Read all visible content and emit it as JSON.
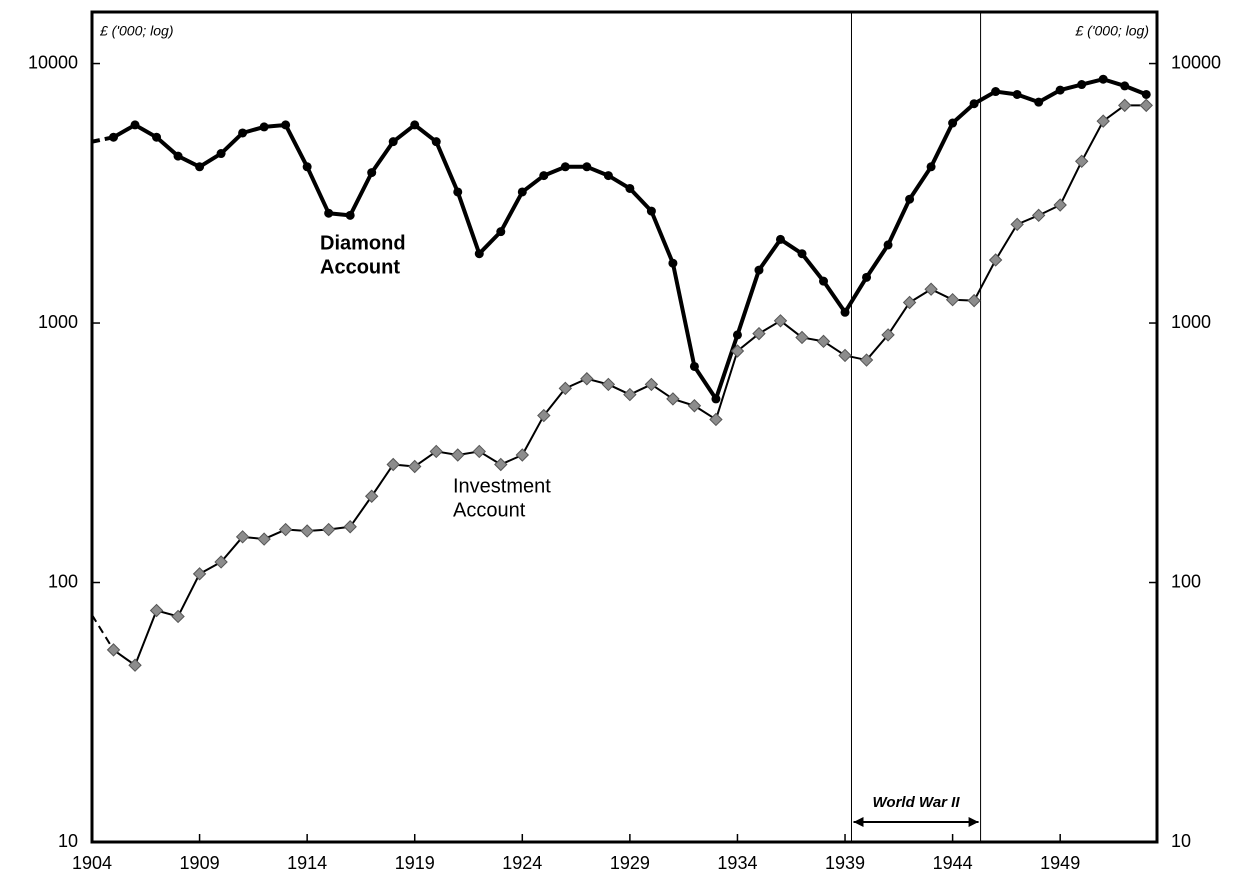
{
  "chart_data": {
    "type": "line",
    "axis_label_left": "£ ('000; log)",
    "axis_label_right": "£ ('000; log)",
    "x": [
      1904,
      1905,
      1906,
      1907,
      1908,
      1909,
      1910,
      1911,
      1912,
      1913,
      1914,
      1915,
      1916,
      1917,
      1918,
      1919,
      1920,
      1921,
      1922,
      1923,
      1924,
      1925,
      1926,
      1927,
      1928,
      1929,
      1930,
      1931,
      1932,
      1933,
      1934,
      1935,
      1936,
      1937,
      1938,
      1939,
      1940,
      1941,
      1942,
      1943,
      1944,
      1945,
      1946,
      1947,
      1948,
      1949,
      1950,
      1951,
      1952,
      1953
    ],
    "xlim": [
      1904,
      1953.5
    ],
    "xticks": [
      1904,
      1909,
      1914,
      1919,
      1924,
      1929,
      1934,
      1939,
      1944,
      1949
    ],
    "ylim": [
      10,
      15800
    ],
    "yticks": [
      10,
      100,
      1000,
      10000
    ],
    "y2lim": [
      10,
      15800
    ],
    "y2ticks": [
      10,
      100,
      1000,
      10000
    ],
    "log_scale": true,
    "dashed_first_segment": true,
    "series": [
      {
        "name": "Diamond Account",
        "color": "#000000",
        "marker": "circle",
        "values": [
          5000,
          5200,
          5800,
          5200,
          4400,
          4000,
          4500,
          5400,
          5700,
          5800,
          4000,
          2650,
          2600,
          3800,
          5000,
          5800,
          5000,
          3200,
          1850,
          2250,
          3200,
          3700,
          4000,
          4000,
          3700,
          3300,
          2700,
          1700,
          680,
          510,
          900,
          1600,
          2100,
          1850,
          1450,
          1100,
          1500,
          2000,
          3000,
          4000,
          5900,
          7000,
          7800,
          7600,
          7100,
          7900,
          8300,
          8700,
          8200,
          7600
        ]
      },
      {
        "name": "Investment Account",
        "color": "#8c8c8c",
        "marker": "diamond",
        "values": [
          75,
          55,
          48,
          78,
          74,
          108,
          120,
          150,
          147,
          160,
          158,
          160,
          164,
          215,
          285,
          280,
          320,
          310,
          320,
          285,
          310,
          440,
          560,
          610,
          580,
          530,
          580,
          510,
          480,
          425,
          780,
          910,
          1020,
          880,
          850,
          750,
          720,
          900,
          1200,
          1350,
          1230,
          1220,
          1750,
          2400,
          2600,
          2850,
          4200,
          6000,
          6900,
          6900
        ]
      }
    ],
    "annotations": [
      {
        "lines": [
          "Diamond",
          "Account"
        ],
        "bold": true
      },
      {
        "lines": [
          "Investment",
          "Account"
        ],
        "bold": false
      }
    ],
    "period": {
      "label": "World War II",
      "start": 1939.3,
      "end": 1945.3
    }
  }
}
